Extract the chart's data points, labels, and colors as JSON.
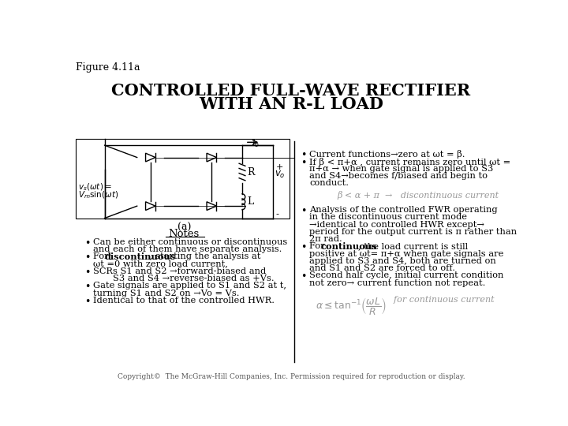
{
  "fig_label": "Figure 4.11a",
  "title_line1": "CONTROLLED FULL-WAVE RECTIFIER",
  "title_line2": "WITH AN R-L LOAD",
  "bg_color": "#ffffff",
  "text_color": "#000000",
  "copyright": "Copyright©  The McGraw-Hill Companies, Inc. Permission required for reproduction or display.",
  "left_notes_header": "Notes",
  "left_bullet1": "Can be either continuous or discontinuous\nand each of them have separate analysis.",
  "left_bullet2a": "For ",
  "left_bullet2b": "discontinuous",
  "left_bullet2c": ", starting the analysis at",
  "left_bullet2d": "ωt =0 with zero load current,",
  "left_bullet3a": "SCRs S1 and S2 →forward-biased and",
  "left_bullet3b": "S3 and S4 →reverse-biased as +Vs.",
  "left_bullet4a": "Gate signals are applied to S1 and S2 at t,",
  "left_bullet4b": "turning S1 and S2 on →Vo = Vs.",
  "left_bullet5": "Identical to that of the controlled HWR.",
  "right_b1a": "Current functions→zero at ωt = β.",
  "right_b1b": "If β < π+α , current remains zero until ωt =",
  "right_b1c": "π+α → when gate signal is applied to S3",
  "right_b1d": "and S4→becomes f/biased and begin to",
  "right_b1e": "conduct.",
  "right_eq1": "β < α + π  →   discontinuous current",
  "right_b2a": "Analysis of the controlled FWR operating",
  "right_b2b": "in the discontinuous current mode",
  "right_b2c": "→identical to controlled HWR except→",
  "right_b2d": "period for the output current is π rather than",
  "right_b2e": "2π rad.",
  "right_b3a": "For ",
  "right_b3b": "continuous",
  "right_b3c": ", the load current is still",
  "right_b3d": "positive at ωt= π+α when gate signals are",
  "right_b3e": "applied to S3 and S4, both are turned on",
  "right_b3f": "and S1 and S2 are forced to off.",
  "right_b4a": "Second half cycle, initial current condition",
  "right_b4b": "not zero→ current function not repeat.",
  "gray_color": "#999999"
}
